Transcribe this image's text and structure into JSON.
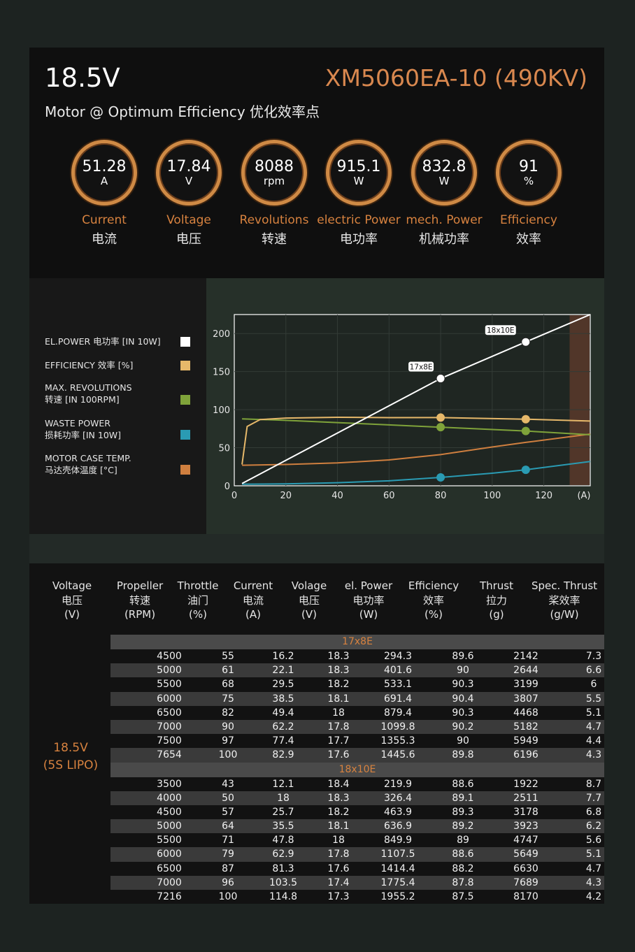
{
  "header": {
    "voltage": "18.5V",
    "model": "XM5060EA-10 (490KV)",
    "subtitle": "Motor @ Optimum Efficiency  优化效率点"
  },
  "metrics": [
    {
      "value": "51.28",
      "unit": "A",
      "label_en": "Current",
      "label_zh": "电流"
    },
    {
      "value": "17.84",
      "unit": "V",
      "label_en": "Voltage",
      "label_zh": "电压"
    },
    {
      "value": "8088",
      "unit": "rpm",
      "label_en": "Revolutions",
      "label_zh": "转速"
    },
    {
      "value": "915.1",
      "unit": "W",
      "label_en": "electric Power",
      "label_zh": "电功率"
    },
    {
      "value": "832.8",
      "unit": "W",
      "label_en": "mech. Power",
      "label_zh": "机械功率"
    },
    {
      "value": "91",
      "unit": "%",
      "label_en": "Efficiency",
      "label_zh": "效率"
    }
  ],
  "legend": [
    {
      "line1": "EL.POWER 电功率 [IN 10W]",
      "line2": "",
      "color": "#ffffff"
    },
    {
      "line1": "EFFICIENCY 效率 [%]",
      "line2": "",
      "color": "#e6b86a"
    },
    {
      "line1": "MAX. REVOLUTIONS",
      "line2": "转速 [IN 100RPM]",
      "color": "#7fa33a"
    },
    {
      "line1": "WASTE POWER",
      "line2": "损耗功率 [IN 10W]",
      "color": "#2a9bb3"
    },
    {
      "line1": "MOTOR CASE TEMP.",
      "line2": "马达壳体温度 [°C]",
      "color": "#cf7f3f"
    }
  ],
  "chart_data": {
    "type": "line",
    "xlim": [
      0,
      138
    ],
    "ylim": [
      0,
      225
    ],
    "x_ticks": [
      "0",
      "20",
      "40",
      "60",
      "80",
      "100",
      "120"
    ],
    "x_unit": "(A)",
    "y_ticks": [
      "0",
      "50",
      "100",
      "150",
      "200"
    ],
    "shaded_region": [
      130,
      138
    ],
    "series": [
      {
        "name": "EL.POWER 电功率 [IN 10W]",
        "color": "#ffffff",
        "x": [
          3,
          80,
          113,
          138
        ],
        "y": [
          3,
          141,
          189,
          225
        ]
      },
      {
        "name": "EFFICIENCY 效率 [%]",
        "color": "#e6b86a",
        "x": [
          3,
          5,
          10,
          20,
          40,
          60,
          80,
          113,
          138
        ],
        "y": [
          28,
          78,
          87,
          89,
          90,
          89.5,
          89.6,
          87.5,
          85
        ]
      },
      {
        "name": "MAX. REVOLUTIONS",
        "color": "#7fa33a",
        "x": [
          3,
          20,
          40,
          60,
          80,
          113,
          138
        ],
        "y": [
          88,
          86,
          83,
          80,
          77,
          72,
          67
        ]
      },
      {
        "name": "WASTE POWER",
        "color": "#2a9bb3",
        "x": [
          3,
          20,
          40,
          60,
          80,
          100,
          113,
          138
        ],
        "y": [
          2,
          2.5,
          4,
          6.5,
          11,
          16.5,
          21,
          32
        ]
      },
      {
        "name": "MOTOR CASE TEMP.",
        "color": "#cf7f3f",
        "x": [
          3,
          20,
          40,
          60,
          80,
          100,
          113,
          138
        ],
        "y": [
          27,
          28,
          30,
          34,
          41,
          51,
          57,
          68
        ]
      }
    ],
    "operating_points": [
      {
        "label": "17x8E",
        "x": 80,
        "el_power": 141,
        "efficiency": 89.6,
        "revolutions": 77,
        "waste": 11
      },
      {
        "label": "18x10E",
        "x": 113,
        "el_power": 189,
        "efficiency": 87.5,
        "revolutions": 72,
        "waste": 21
      }
    ]
  },
  "table": {
    "headers": [
      {
        "l1": "Voltage",
        "l2": "电压",
        "l3": "(V)"
      },
      {
        "l1": "Propeller",
        "l2": "转速",
        "l3": "(RPM)"
      },
      {
        "l1": "Throttle",
        "l2": "油门",
        "l3": "(%)"
      },
      {
        "l1": "Current",
        "l2": "电流",
        "l3": "(A)"
      },
      {
        "l1": "Volage",
        "l2": "电压",
        "l3": "(V)"
      },
      {
        "l1": "el. Power",
        "l2": "电功率",
        "l3": "(W)"
      },
      {
        "l1": "Efficiency",
        "l2": "效率",
        "l3": "(%)"
      },
      {
        "l1": "Thrust",
        "l2": "拉力",
        "l3": "(g)"
      },
      {
        "l1": "Spec. Thrust",
        "l2": "桨效率",
        "l3": "(g/W)"
      }
    ],
    "side_line1": "18.5V",
    "side_line2": "(5S LIPO)",
    "groups": [
      {
        "name": "17x8E",
        "rows": [
          [
            "4500",
            "55",
            "16.2",
            "18.3",
            "294.3",
            "89.6",
            "2142",
            "7.3"
          ],
          [
            "5000",
            "61",
            "22.1",
            "18.3",
            "401.6",
            "90",
            "2644",
            "6.6"
          ],
          [
            "5500",
            "68",
            "29.5",
            "18.2",
            "533.1",
            "90.3",
            "3199",
            "6"
          ],
          [
            "6000",
            "75",
            "38.5",
            "18.1",
            "691.4",
            "90.4",
            "3807",
            "5.5"
          ],
          [
            "6500",
            "82",
            "49.4",
            "18",
            "879.4",
            "90.3",
            "4468",
            "5.1"
          ],
          [
            "7000",
            "90",
            "62.2",
            "17.8",
            "1099.8",
            "90.2",
            "5182",
            "4.7"
          ],
          [
            "7500",
            "97",
            "77.4",
            "17.7",
            "1355.3",
            "90",
            "5949",
            "4.4"
          ],
          [
            "7654",
            "100",
            "82.9",
            "17.6",
            "1445.6",
            "89.8",
            "6196",
            "4.3"
          ]
        ]
      },
      {
        "name": "18x10E",
        "rows": [
          [
            "3500",
            "43",
            "12.1",
            "18.4",
            "219.9",
            "88.6",
            "1922",
            "8.7"
          ],
          [
            "4000",
            "50",
            "18",
            "18.3",
            "326.4",
            "89.1",
            "2511",
            "7.7"
          ],
          [
            "4500",
            "57",
            "25.7",
            "18.2",
            "463.9",
            "89.3",
            "3178",
            "6.8"
          ],
          [
            "5000",
            "64",
            "35.5",
            "18.1",
            "636.9",
            "89.2",
            "3923",
            "6.2"
          ],
          [
            "5500",
            "71",
            "47.8",
            "18",
            "849.9",
            "89",
            "4747",
            "5.6"
          ],
          [
            "6000",
            "79",
            "62.9",
            "17.8",
            "1107.5",
            "88.6",
            "5649",
            "5.1"
          ],
          [
            "6500",
            "87",
            "81.3",
            "17.6",
            "1414.4",
            "88.2",
            "6630",
            "4.7"
          ],
          [
            "7000",
            "96",
            "103.5",
            "17.4",
            "1775.4",
            "87.8",
            "7689",
            "4.3"
          ],
          [
            "7216",
            "100",
            "114.8",
            "17.3",
            "1955.2",
            "87.5",
            "8170",
            "4.2"
          ]
        ]
      }
    ]
  }
}
